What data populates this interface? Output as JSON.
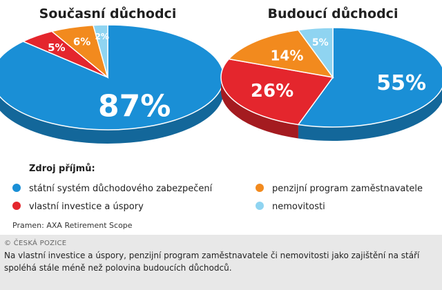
{
  "chart_data": [
    {
      "type": "pie",
      "title": "Současní důchodci",
      "categories": [
        "státní systém důchodového zabezpečení",
        "vlastní investice a úspory",
        "penzijní program zaměstnavatele",
        "nemovitosti"
      ],
      "values": [
        87,
        5,
        6,
        2
      ],
      "value_labels": [
        "87%",
        "5%",
        "6%",
        "2%"
      ],
      "colors": [
        "#1a8fd6",
        "#e4262d",
        "#f28a1e",
        "#8fd4f1"
      ]
    },
    {
      "type": "pie",
      "title": "Budoucí důchodci",
      "categories": [
        "státní systém důchodového zabezpečení",
        "vlastní investice a úspory",
        "penzijní program zaměstnavatele",
        "nemovitosti"
      ],
      "values": [
        55,
        26,
        14,
        5
      ],
      "value_labels": [
        "55%",
        "26%",
        "14%",
        "5%"
      ],
      "colors": [
        "#1a8fd6",
        "#e4262d",
        "#f28a1e",
        "#8fd4f1"
      ]
    }
  ],
  "legend": {
    "heading": "Zdroj příjmů:",
    "items": [
      {
        "label": "státní systém důchodového zabezpečení",
        "color": "#1a8fd6"
      },
      {
        "label": "penzijní program zaměstnavatele",
        "color": "#f28a1e"
      },
      {
        "label": "vlastní investice a úspory",
        "color": "#e4262d"
      },
      {
        "label": "nemovitosti",
        "color": "#8fd4f1"
      }
    ]
  },
  "source": "Pramen: AXA Retirement Scope",
  "credit": "© ČESKÁ POZICE",
  "caption": "Na vlastní investice a úspory, penzijní program zaměstnavatele či nemovitosti jako zajištění na stáří spoléhá stále méně než polovina budoucích důchodců."
}
